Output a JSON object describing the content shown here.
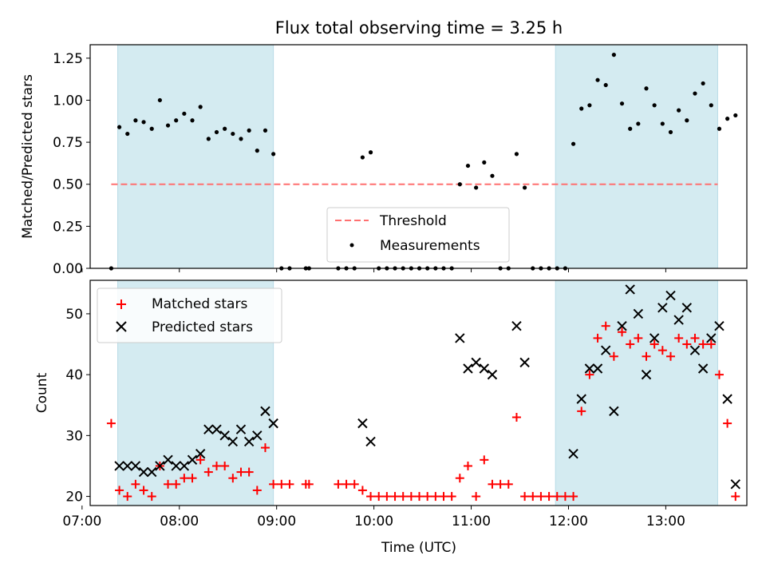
{
  "title": "Flux total observing time = 3.25 h",
  "colors": {
    "shade": "#d4ebf1",
    "threshold": "#ff7070",
    "measurement": "#000000",
    "matched": "#ff0000",
    "predicted": "#000000"
  },
  "chart_data": [
    {
      "type": "scatter",
      "ylabel": "Matched/Predicted stars",
      "xlabel": "",
      "xlim": [
        "07:05",
        "13:50"
      ],
      "ylim": [
        0,
        1.33
      ],
      "yticks": [
        "0.00",
        "0.25",
        "0.50",
        "0.75",
        "1.00",
        "1.25"
      ],
      "xtick_values": [
        "07:00",
        "08:00",
        "09:00",
        "10:00",
        "11:00",
        "12:00",
        "13:00"
      ],
      "shaded_intervals": [
        [
          "07:22",
          "08:58"
        ],
        [
          "11:52",
          "13:32"
        ]
      ],
      "threshold": {
        "name": "Threshold",
        "value": 0.5,
        "x_range": [
          "07:18",
          "13:32"
        ]
      },
      "legend": {
        "position": "lower-center",
        "entries": [
          "Threshold",
          "Measurements"
        ]
      },
      "series": [
        {
          "name": "Measurements",
          "marker": "dot",
          "points": [
            [
              "07:18",
              0.0
            ],
            [
              "07:23",
              0.84
            ],
            [
              "07:28",
              0.8
            ],
            [
              "07:33",
              0.88
            ],
            [
              "07:38",
              0.87
            ],
            [
              "07:43",
              0.83
            ],
            [
              "07:48",
              1.0
            ],
            [
              "07:53",
              0.85
            ],
            [
              "07:58",
              0.88
            ],
            [
              "08:03",
              0.92
            ],
            [
              "08:08",
              0.88
            ],
            [
              "08:13",
              0.96
            ],
            [
              "08:18",
              0.77
            ],
            [
              "08:23",
              0.81
            ],
            [
              "08:28",
              0.83
            ],
            [
              "08:33",
              0.8
            ],
            [
              "08:38",
              0.77
            ],
            [
              "08:43",
              0.82
            ],
            [
              "08:48",
              0.7
            ],
            [
              "08:53",
              0.82
            ],
            [
              "08:58",
              0.68
            ],
            [
              "09:03",
              0.0
            ],
            [
              "09:08",
              0.0
            ],
            [
              "09:18",
              0.0
            ],
            [
              "09:20",
              0.0
            ],
            [
              "09:38",
              0.0
            ],
            [
              "09:43",
              0.0
            ],
            [
              "09:48",
              0.0
            ],
            [
              "09:53",
              0.66
            ],
            [
              "09:58",
              0.69
            ],
            [
              "10:03",
              0.0
            ],
            [
              "10:08",
              0.0
            ],
            [
              "10:13",
              0.0
            ],
            [
              "10:18",
              0.0
            ],
            [
              "10:23",
              0.0
            ],
            [
              "10:28",
              0.0
            ],
            [
              "10:33",
              0.0
            ],
            [
              "10:38",
              0.0
            ],
            [
              "10:43",
              0.0
            ],
            [
              "10:48",
              0.0
            ],
            [
              "10:53",
              0.5
            ],
            [
              "10:58",
              0.61
            ],
            [
              "11:03",
              0.48
            ],
            [
              "11:08",
              0.63
            ],
            [
              "11:13",
              0.55
            ],
            [
              "11:18",
              0.0
            ],
            [
              "11:23",
              0.0
            ],
            [
              "11:28",
              0.68
            ],
            [
              "11:33",
              0.48
            ],
            [
              "11:38",
              0.0
            ],
            [
              "11:43",
              0.0
            ],
            [
              "11:48",
              0.0
            ],
            [
              "11:53",
              0.0
            ],
            [
              "11:58",
              0.0
            ],
            [
              "12:03",
              0.74
            ],
            [
              "12:08",
              0.95
            ],
            [
              "12:13",
              0.97
            ],
            [
              "12:18",
              1.12
            ],
            [
              "12:23",
              1.09
            ],
            [
              "12:28",
              1.27
            ],
            [
              "12:33",
              0.98
            ],
            [
              "12:38",
              0.83
            ],
            [
              "12:43",
              0.86
            ],
            [
              "12:48",
              1.07
            ],
            [
              "12:53",
              0.97
            ],
            [
              "12:58",
              0.86
            ],
            [
              "13:03",
              0.81
            ],
            [
              "13:08",
              0.94
            ],
            [
              "13:13",
              0.88
            ],
            [
              "13:18",
              1.04
            ],
            [
              "13:23",
              1.1
            ],
            [
              "13:28",
              0.97
            ],
            [
              "13:33",
              0.83
            ],
            [
              "13:38",
              0.89
            ],
            [
              "13:43",
              0.91
            ]
          ]
        }
      ]
    },
    {
      "type": "scatter",
      "ylabel": "Count",
      "xlabel": "Time (UTC)",
      "xlim": [
        "07:05",
        "13:50"
      ],
      "ylim": [
        18.5,
        55.5
      ],
      "yticks": [
        "20",
        "30",
        "40",
        "50"
      ],
      "xticks": [
        "07:00",
        "08:00",
        "09:00",
        "10:00",
        "11:00",
        "12:00",
        "13:00"
      ],
      "shaded_intervals": [
        [
          "07:22",
          "08:58"
        ],
        [
          "11:52",
          "13:32"
        ]
      ],
      "legend": {
        "position": "top-left",
        "entries": [
          "Matched stars",
          "Predicted stars"
        ]
      },
      "series": [
        {
          "name": "Matched stars",
          "marker": "plus",
          "points": [
            [
              "07:18",
              32
            ],
            [
              "07:23",
              21
            ],
            [
              "07:28",
              20
            ],
            [
              "07:33",
              22
            ],
            [
              "07:38",
              21
            ],
            [
              "07:43",
              20
            ],
            [
              "07:48",
              25
            ],
            [
              "07:53",
              22
            ],
            [
              "07:58",
              22
            ],
            [
              "08:03",
              23
            ],
            [
              "08:08",
              23
            ],
            [
              "08:13",
              26
            ],
            [
              "08:18",
              24
            ],
            [
              "08:23",
              25
            ],
            [
              "08:28",
              25
            ],
            [
              "08:33",
              23
            ],
            [
              "08:38",
              24
            ],
            [
              "08:43",
              24
            ],
            [
              "08:48",
              21
            ],
            [
              "08:53",
              28
            ],
            [
              "08:58",
              22
            ],
            [
              "09:03",
              22
            ],
            [
              "09:08",
              22
            ],
            [
              "09:18",
              22
            ],
            [
              "09:20",
              22
            ],
            [
              "09:38",
              22
            ],
            [
              "09:43",
              22
            ],
            [
              "09:48",
              22
            ],
            [
              "09:53",
              21
            ],
            [
              "09:58",
              20
            ],
            [
              "10:03",
              20
            ],
            [
              "10:08",
              20
            ],
            [
              "10:13",
              20
            ],
            [
              "10:18",
              20
            ],
            [
              "10:23",
              20
            ],
            [
              "10:28",
              20
            ],
            [
              "10:33",
              20
            ],
            [
              "10:38",
              20
            ],
            [
              "10:43",
              20
            ],
            [
              "10:48",
              20
            ],
            [
              "10:53",
              23
            ],
            [
              "10:58",
              25
            ],
            [
              "11:03",
              20
            ],
            [
              "11:08",
              26
            ],
            [
              "11:13",
              22
            ],
            [
              "11:18",
              22
            ],
            [
              "11:23",
              22
            ],
            [
              "11:28",
              33
            ],
            [
              "11:33",
              20
            ],
            [
              "11:38",
              20
            ],
            [
              "11:43",
              20
            ],
            [
              "11:48",
              20
            ],
            [
              "11:53",
              20
            ],
            [
              "11:58",
              20
            ],
            [
              "12:03",
              20
            ],
            [
              "12:08",
              34
            ],
            [
              "12:13",
              40
            ],
            [
              "12:18",
              46
            ],
            [
              "12:23",
              48
            ],
            [
              "12:28",
              43
            ],
            [
              "12:33",
              47
            ],
            [
              "12:38",
              45
            ],
            [
              "12:43",
              46
            ],
            [
              "12:48",
              43
            ],
            [
              "12:53",
              45
            ],
            [
              "12:58",
              44
            ],
            [
              "13:03",
              43
            ],
            [
              "13:08",
              46
            ],
            [
              "13:13",
              45
            ],
            [
              "13:18",
              46
            ],
            [
              "13:23",
              45
            ],
            [
              "13:28",
              45
            ],
            [
              "13:33",
              40
            ],
            [
              "13:38",
              32
            ],
            [
              "13:43",
              20
            ]
          ]
        },
        {
          "name": "Predicted stars",
          "marker": "x",
          "points": [
            [
              "07:23",
              25
            ],
            [
              "07:28",
              25
            ],
            [
              "07:33",
              25
            ],
            [
              "07:38",
              24
            ],
            [
              "07:43",
              24
            ],
            [
              "07:48",
              25
            ],
            [
              "07:53",
              26
            ],
            [
              "07:58",
              25
            ],
            [
              "08:03",
              25
            ],
            [
              "08:08",
              26
            ],
            [
              "08:13",
              27
            ],
            [
              "08:18",
              31
            ],
            [
              "08:23",
              31
            ],
            [
              "08:28",
              30
            ],
            [
              "08:33",
              29
            ],
            [
              "08:38",
              31
            ],
            [
              "08:43",
              29
            ],
            [
              "08:48",
              30
            ],
            [
              "08:53",
              34
            ],
            [
              "08:58",
              32
            ],
            [
              "09:53",
              32
            ],
            [
              "09:58",
              29
            ],
            [
              "10:53",
              46
            ],
            [
              "10:58",
              41
            ],
            [
              "11:03",
              42
            ],
            [
              "11:08",
              41
            ],
            [
              "11:13",
              40
            ],
            [
              "11:28",
              48
            ],
            [
              "11:33",
              42
            ],
            [
              "12:03",
              27
            ],
            [
              "12:08",
              36
            ],
            [
              "12:13",
              41
            ],
            [
              "12:18",
              41
            ],
            [
              "12:23",
              44
            ],
            [
              "12:28",
              34
            ],
            [
              "12:33",
              48
            ],
            [
              "12:38",
              54
            ],
            [
              "12:43",
              50
            ],
            [
              "12:48",
              40
            ],
            [
              "12:53",
              46
            ],
            [
              "12:58",
              51
            ],
            [
              "13:03",
              53
            ],
            [
              "13:08",
              49
            ],
            [
              "13:13",
              51
            ],
            [
              "13:18",
              44
            ],
            [
              "13:23",
              41
            ],
            [
              "13:28",
              46
            ],
            [
              "13:33",
              48
            ],
            [
              "13:38",
              36
            ],
            [
              "13:43",
              22
            ]
          ]
        }
      ]
    }
  ]
}
